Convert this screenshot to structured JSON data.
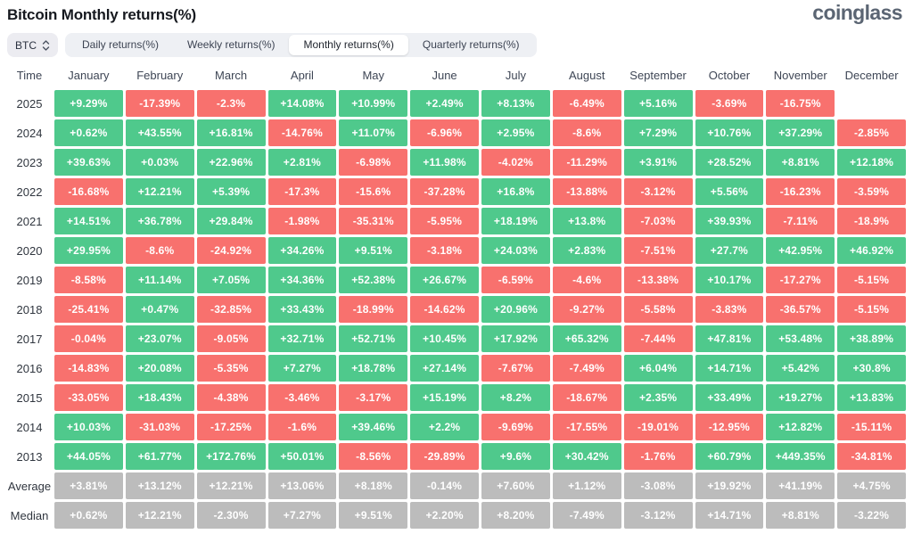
{
  "header": {
    "title": "Bitcoin Monthly returns(%)",
    "logo_text": "coinglass"
  },
  "controls": {
    "coin_select": {
      "value": "BTC"
    },
    "tabs": [
      {
        "label": "Daily returns(%)",
        "active": false
      },
      {
        "label": "Weekly returns(%)",
        "active": false
      },
      {
        "label": "Monthly returns(%)",
        "active": true
      },
      {
        "label": "Quarterly returns(%)",
        "active": false
      }
    ]
  },
  "colors": {
    "positive": "#4fc98c",
    "negative": "#f8716e",
    "neutral": "#bcbcbc"
  },
  "chart_data": {
    "type": "heatmap",
    "title": "Bitcoin Monthly returns(%)",
    "time_header": "Time",
    "columns": [
      "January",
      "February",
      "March",
      "April",
      "May",
      "June",
      "July",
      "August",
      "September",
      "October",
      "November",
      "December"
    ],
    "rows": [
      {
        "label": "2025",
        "values": [
          "+9.29%",
          "-17.39%",
          "-2.3%",
          "+14.08%",
          "+10.99%",
          "+2.49%",
          "+8.13%",
          "-6.49%",
          "+5.16%",
          "-3.69%",
          "-16.75%",
          ""
        ]
      },
      {
        "label": "2024",
        "values": [
          "+0.62%",
          "+43.55%",
          "+16.81%",
          "-14.76%",
          "+11.07%",
          "-6.96%",
          "+2.95%",
          "-8.6%",
          "+7.29%",
          "+10.76%",
          "+37.29%",
          "-2.85%"
        ]
      },
      {
        "label": "2023",
        "values": [
          "+39.63%",
          "+0.03%",
          "+22.96%",
          "+2.81%",
          "-6.98%",
          "+11.98%",
          "-4.02%",
          "-11.29%",
          "+3.91%",
          "+28.52%",
          "+8.81%",
          "+12.18%"
        ]
      },
      {
        "label": "2022",
        "values": [
          "-16.68%",
          "+12.21%",
          "+5.39%",
          "-17.3%",
          "-15.6%",
          "-37.28%",
          "+16.8%",
          "-13.88%",
          "-3.12%",
          "+5.56%",
          "-16.23%",
          "-3.59%"
        ]
      },
      {
        "label": "2021",
        "values": [
          "+14.51%",
          "+36.78%",
          "+29.84%",
          "-1.98%",
          "-35.31%",
          "-5.95%",
          "+18.19%",
          "+13.8%",
          "-7.03%",
          "+39.93%",
          "-7.11%",
          "-18.9%"
        ]
      },
      {
        "label": "2020",
        "values": [
          "+29.95%",
          "-8.6%",
          "-24.92%",
          "+34.26%",
          "+9.51%",
          "-3.18%",
          "+24.03%",
          "+2.83%",
          "-7.51%",
          "+27.7%",
          "+42.95%",
          "+46.92%"
        ]
      },
      {
        "label": "2019",
        "values": [
          "-8.58%",
          "+11.14%",
          "+7.05%",
          "+34.36%",
          "+52.38%",
          "+26.67%",
          "-6.59%",
          "-4.6%",
          "-13.38%",
          "+10.17%",
          "-17.27%",
          "-5.15%"
        ]
      },
      {
        "label": "2018",
        "values": [
          "-25.41%",
          "+0.47%",
          "-32.85%",
          "+33.43%",
          "-18.99%",
          "-14.62%",
          "+20.96%",
          "-9.27%",
          "-5.58%",
          "-3.83%",
          "-36.57%",
          "-5.15%"
        ]
      },
      {
        "label": "2017",
        "values": [
          "-0.04%",
          "+23.07%",
          "-9.05%",
          "+32.71%",
          "+52.71%",
          "+10.45%",
          "+17.92%",
          "+65.32%",
          "-7.44%",
          "+47.81%",
          "+53.48%",
          "+38.89%"
        ]
      },
      {
        "label": "2016",
        "values": [
          "-14.83%",
          "+20.08%",
          "-5.35%",
          "+7.27%",
          "+18.78%",
          "+27.14%",
          "-7.67%",
          "-7.49%",
          "+6.04%",
          "+14.71%",
          "+5.42%",
          "+30.8%"
        ]
      },
      {
        "label": "2015",
        "values": [
          "-33.05%",
          "+18.43%",
          "-4.38%",
          "-3.46%",
          "-3.17%",
          "+15.19%",
          "+8.2%",
          "-18.67%",
          "+2.35%",
          "+33.49%",
          "+19.27%",
          "+13.83%"
        ]
      },
      {
        "label": "2014",
        "values": [
          "+10.03%",
          "-31.03%",
          "-17.25%",
          "-1.6%",
          "+39.46%",
          "+2.2%",
          "-9.69%",
          "-17.55%",
          "-19.01%",
          "-12.95%",
          "+12.82%",
          "-15.11%"
        ]
      },
      {
        "label": "2013",
        "values": [
          "+44.05%",
          "+61.77%",
          "+172.76%",
          "+50.01%",
          "-8.56%",
          "-29.89%",
          "+9.6%",
          "+30.42%",
          "-1.76%",
          "+60.79%",
          "+449.35%",
          "-34.81%"
        ]
      },
      {
        "label": "Average",
        "style": "gray",
        "values": [
          "+3.81%",
          "+13.12%",
          "+12.21%",
          "+13.06%",
          "+8.18%",
          "-0.14%",
          "+7.60%",
          "+1.12%",
          "-3.08%",
          "+19.92%",
          "+41.19%",
          "+4.75%"
        ]
      },
      {
        "label": "Median",
        "style": "gray",
        "values": [
          "+0.62%",
          "+12.21%",
          "-2.30%",
          "+7.27%",
          "+9.51%",
          "+2.20%",
          "+8.20%",
          "-7.49%",
          "-3.12%",
          "+14.71%",
          "+8.81%",
          "-3.22%"
        ]
      }
    ]
  }
}
